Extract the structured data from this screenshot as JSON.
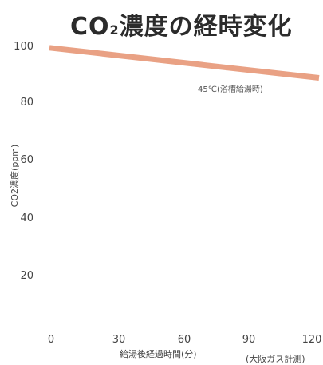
{
  "header": {
    "title_main": "CO",
    "title_sub": "2",
    "title_rest": "濃度の経時変化"
  },
  "chart_data": {
    "type": "line",
    "title": "CO2濃度の経時変化",
    "xlabel": "給湯後経過時間(分)",
    "ylabel": "CO2濃度(ppm)",
    "source": "(大阪ガス計測)",
    "xlim": [
      0,
      120
    ],
    "ylim": [
      0,
      100
    ],
    "x_ticks": [
      "0",
      "30",
      "60",
      "90",
      "120"
    ],
    "y_ticks": [
      "20",
      "40",
      "60",
      "80",
      "100"
    ],
    "grid": false,
    "series": [
      {
        "name": "45℃(浴槽給湯時)",
        "color": "#e9a184",
        "x": [
          0,
          120
        ],
        "y": [
          99.5,
          89
        ]
      }
    ]
  }
}
